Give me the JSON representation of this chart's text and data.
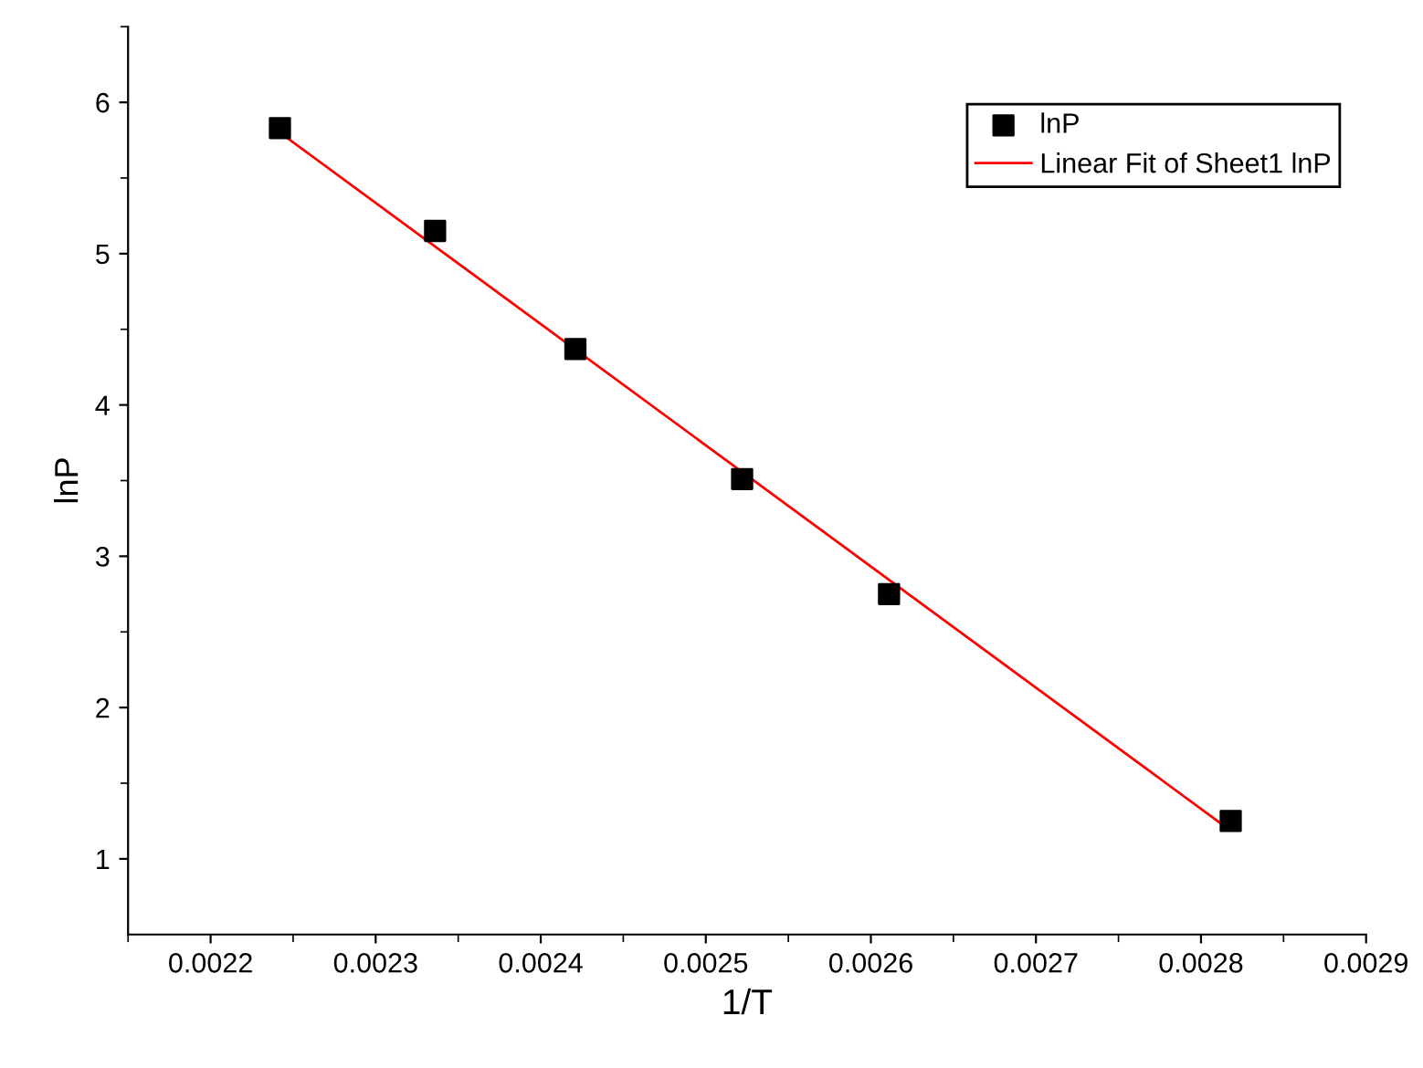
{
  "chart_data": {
    "type": "scatter",
    "xlabel": "1/T",
    "ylabel": "lnP",
    "xlim": [
      0.00215,
      0.0029
    ],
    "ylim": [
      0.5,
      6.5
    ],
    "xticks": [
      0.0022,
      0.0023,
      0.0024,
      0.0025,
      0.0026,
      0.0027,
      0.0028,
      0.0029
    ],
    "yticks": [
      1,
      2,
      3,
      4,
      5,
      6
    ],
    "series": [
      {
        "name": "lnP",
        "color": "#000000",
        "marker": "square",
        "x": [
          0.002242,
          0.002336,
          0.002421,
          0.002522,
          0.002611,
          0.002818
        ],
        "values": [
          5.83,
          5.15,
          4.37,
          3.51,
          2.75,
          1.25
        ]
      },
      {
        "name": "Linear Fit of Sheet1 lnP",
        "type": "line",
        "color": "#ff0000",
        "marker": "none",
        "line_style": "solid",
        "x": [
          0.002242,
          0.002815
        ],
        "values": [
          5.8,
          1.21
        ]
      }
    ],
    "legend": "top right",
    "grid": false
  }
}
